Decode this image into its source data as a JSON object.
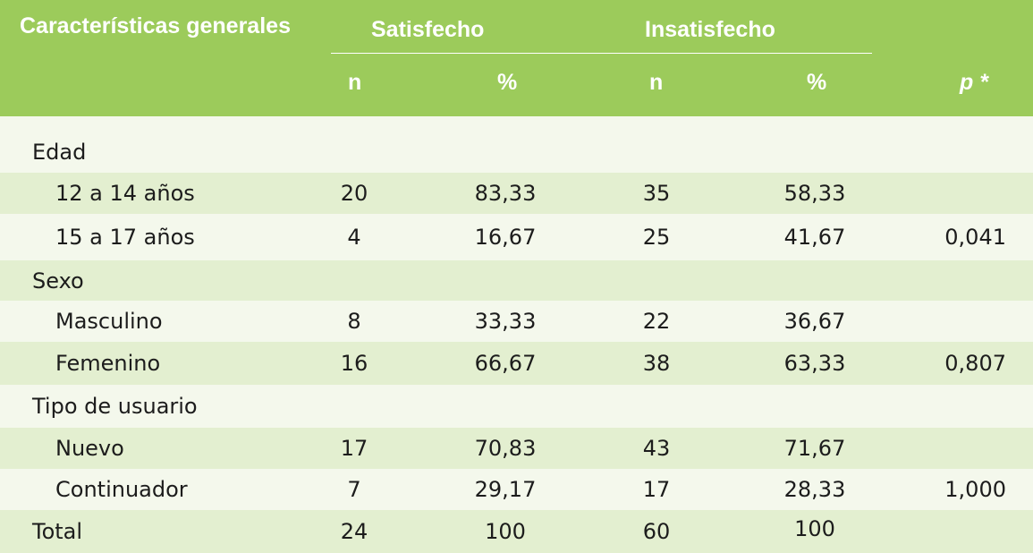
{
  "header": {
    "characteristics": "Características generales",
    "satisfied": "Satisfecho",
    "unsatisfied": "Insatisfecho",
    "n1": "n",
    "pct1": "%",
    "n2": "n",
    "pct2": "%",
    "p": "p *"
  },
  "rows": [
    {
      "label": "Edad",
      "n1": "",
      "pct1": "",
      "n2": "",
      "pct2": "",
      "p": ""
    },
    {
      "label": "12 a 14 años",
      "n1": "20",
      "pct1": "83,33",
      "n2": "35",
      "pct2": "58,33",
      "p": ""
    },
    {
      "label": "15 a 17 años",
      "n1": "4",
      "pct1": "16,67",
      "n2": "25",
      "pct2": "41,67",
      "p": "0,041"
    },
    {
      "label": "Sexo",
      "n1": "",
      "pct1": "",
      "n2": "",
      "pct2": "",
      "p": ""
    },
    {
      "label": "Masculino",
      "n1": "8",
      "pct1": "33,33",
      "n2": "22",
      "pct2": "36,67",
      "p": ""
    },
    {
      "label": "Femenino",
      "n1": "16",
      "pct1": "66,67",
      "n2": "38",
      "pct2": "63,33",
      "p": "0,807"
    },
    {
      "label": "Tipo de usuario",
      "n1": "",
      "pct1": "",
      "n2": "",
      "pct2": "",
      "p": ""
    },
    {
      "label": "Nuevo",
      "n1": "17",
      "pct1": "70,83",
      "n2": "43",
      "pct2": "71,67",
      "p": ""
    },
    {
      "label": "Continuador",
      "n1": "7",
      "pct1": "29,17",
      "n2": "17",
      "pct2": "28,33",
      "p": "1,000"
    },
    {
      "label": "Total",
      "n1": "24",
      "pct1": "100",
      "n2": "60",
      "pct2": "100",
      "p": ""
    }
  ],
  "colors": {
    "header_bg": "#9ccb5b",
    "band_bg": "#e3efd0",
    "base_bg": "#f4f8ec"
  }
}
